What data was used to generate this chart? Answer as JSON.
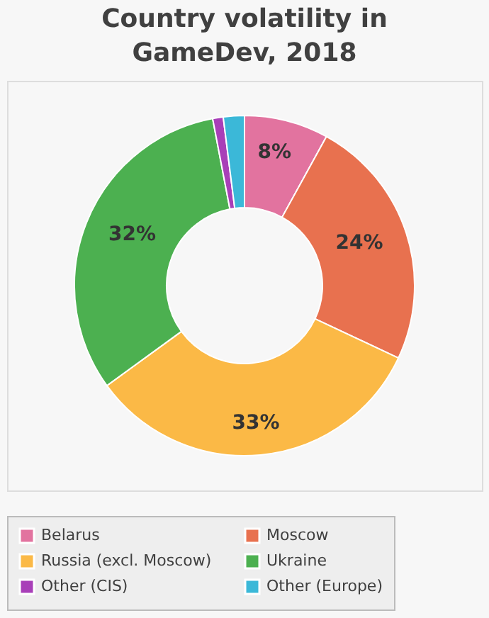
{
  "chart_data": {
    "type": "donut",
    "title": "Country volatility in GameDev, 2018",
    "categories": [
      "Belarus",
      "Moscow",
      "Russia (excl. Moscow)",
      "Ukraine",
      "Other (CIS)",
      "Other (Europe)"
    ],
    "values": [
      8,
      24,
      33,
      32,
      1,
      2
    ],
    "colors": [
      "#e2739f",
      "#e8714f",
      "#fbb946",
      "#4cb050",
      "#a83fb8",
      "#3bb8d8"
    ],
    "value_labels": [
      "8%",
      "24%",
      "33%",
      "32%",
      null,
      null
    ],
    "legend": "bottom"
  }
}
